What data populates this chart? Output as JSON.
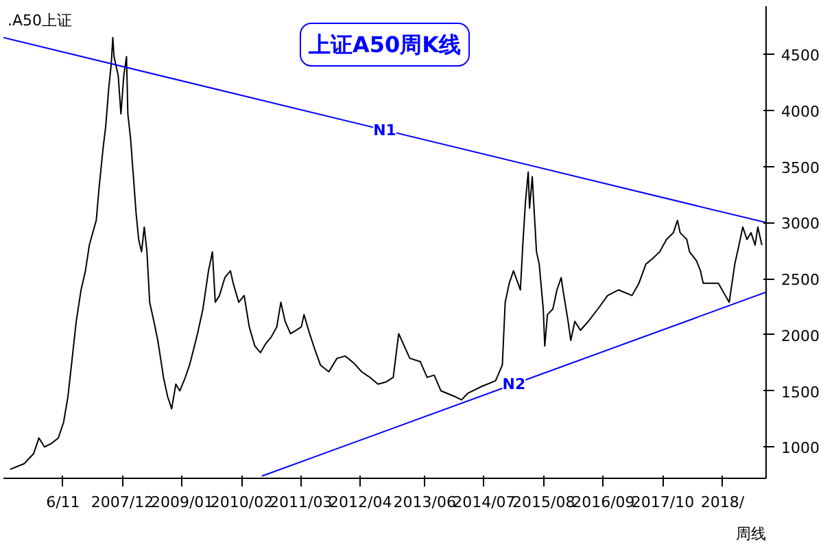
{
  "chart_data": {
    "type": "line",
    "title": "上证A50周K线",
    "annotations": [
      ".A50上证",
      "周线"
    ],
    "x": [
      "2005-11-15",
      "2006-02-15",
      "2006-04-20",
      "2006-05-25",
      "2006-07-01",
      "2006-08-15",
      "2006-10-01",
      "2006-11-05",
      "2006-12-04",
      "2007-01-01",
      "2007-01-28",
      "2007-03-01",
      "2007-03-30",
      "2007-04-25",
      "2007-05-22",
      "2007-06-10",
      "2007-06-28",
      "2007-07-25",
      "2007-08-12",
      "2007-09-01",
      "2007-09-18",
      "2007-09-28",
      "2007-10-06",
      "2007-11-03",
      "2007-11-21",
      "2007-12-10",
      "2007-12-28",
      "2008-01-06",
      "2008-01-24",
      "2008-02-12",
      "2008-03-01",
      "2008-03-18",
      "2008-04-06",
      "2008-04-24",
      "2008-05-12",
      "2008-05-30",
      "2008-06-27",
      "2008-07-23",
      "2008-08-30",
      "2008-09-26",
      "2008-10-23",
      "2008-11-20",
      "2008-12-16",
      "2009-01-22",
      "2009-02-19",
      "2009-03-16",
      "2009-04-13",
      "2009-05-19",
      "2009-06-25",
      "2009-07-21",
      "2009-08-09",
      "2009-09-06",
      "2009-10-12",
      "2009-11-18",
      "2009-12-06",
      "2010-01-12",
      "2010-02-17",
      "2010-03-23",
      "2010-04-29",
      "2010-06-05",
      "2010-07-10",
      "2010-08-16",
      "2010-09-22",
      "2010-10-19",
      "2010-11-16",
      "2010-12-22",
      "2011-01-28",
      "2011-03-04",
      "2011-03-22",
      "2011-04-28",
      "2011-06-04",
      "2011-07-09",
      "2011-09-03",
      "2011-10-27",
      "2011-12-21",
      "2012-02-14",
      "2012-04-08",
      "2012-06-02",
      "2012-07-26",
      "2012-09-19",
      "2012-11-04",
      "2012-12-10",
      "2013-01-16",
      "2013-02-22",
      "2013-05-03",
      "2013-06-17",
      "2013-08-03",
      "2013-09-17",
      "2013-12-17",
      "2014-02-01",
      "2014-03-16",
      "2014-06-16",
      "2014-09-15",
      "2014-10-30",
      "2014-11-18",
      "2014-12-15",
      "2015-01-12",
      "2015-02-27",
      "2015-03-15",
      "2015-04-02",
      "2015-04-20",
      "2015-04-29",
      "2015-05-17",
      "2015-05-26",
      "2015-06-14",
      "2015-07-02",
      "2015-07-29",
      "2015-08-08",
      "2015-08-26",
      "2015-10-01",
      "2015-10-28",
      "2015-11-25",
      "2015-12-13",
      "2016-01-10",
      "2016-01-28",
      "2016-02-24",
      "2016-04-01",
      "2016-05-24",
      "2016-07-26",
      "2016-09-29",
      "2016-12-11",
      "2017-03-10",
      "2017-04-25",
      "2017-06-10",
      "2017-07-25",
      "2017-09-10",
      "2017-10-25",
      "2017-12-10",
      "2018-01-06",
      "2018-01-24",
      "2018-03-09",
      "2018-03-27",
      "2018-05-12",
      "2018-06-08",
      "2018-06-26",
      "2018-08-11",
      "2018-10-05",
      "2018-11-20",
      "2018-12-16",
      "2019-01-22",
      "2019-02-19",
      "2019-03-16",
      "2019-04-13",
      "2019-05-10",
      "2019-06-06",
      "2019-06-24",
      "2019-07-21"
    ],
    "series": [
      {
        "color": "#000000",
        "values": [
          800,
          850,
          940,
          1080,
          1000,
          1030,
          1080,
          1220,
          1450,
          1790,
          2120,
          2400,
          2570,
          2800,
          2930,
          3020,
          3300,
          3660,
          3860,
          4200,
          4420,
          4650,
          4480,
          4310,
          3970,
          4310,
          4480,
          3970,
          3750,
          3410,
          3080,
          2850,
          2740,
          2960,
          2740,
          2290,
          2120,
          1950,
          1620,
          1450,
          1340,
          1560,
          1500,
          1620,
          1730,
          1860,
          2010,
          2230,
          2570,
          2740,
          2290,
          2350,
          2510,
          2570,
          2460,
          2290,
          2350,
          2070,
          1900,
          1840,
          1920,
          1980,
          2070,
          2290,
          2120,
          2010,
          2040,
          2070,
          2180,
          2010,
          1860,
          1730,
          1670,
          1790,
          1810,
          1750,
          1670,
          1620,
          1560,
          1580,
          1620,
          2010,
          1900,
          1790,
          1760,
          1620,
          1640,
          1500,
          1450,
          1420,
          1480,
          1540,
          1590,
          1730,
          2290,
          2460,
          2570,
          2400,
          2800,
          3190,
          3450,
          3130,
          3410,
          3190,
          2740,
          2630,
          2230,
          1900,
          2180,
          2230,
          2400,
          2510,
          2350,
          2120,
          1950,
          2120,
          2040,
          2120,
          2230,
          2350,
          2400,
          2350,
          2460,
          2630,
          2680,
          2740,
          2850,
          2910,
          3020,
          2910,
          2850,
          2740,
          2660,
          2570,
          2460,
          2460,
          2460,
          2350,
          2290,
          2630,
          2800,
          2960,
          2850,
          2910,
          2800,
          2960,
          2800
        ]
      },
      {
        "name": "N1",
        "type": "line",
        "color": "#0000ff",
        "x": [
          "2005-10-01",
          "2019-08-18"
        ],
        "values": [
          4650,
          3000
        ]
      },
      {
        "name": "N2",
        "type": "line",
        "color": "#0000ff",
        "x": [
          "2010-06-15",
          "2019-08-18"
        ],
        "values": [
          740,
          2380
        ]
      }
    ],
    "xlim": [
      "2005-10-01",
      "2019-08-18"
    ],
    "xticks": [
      {
        "value": "2006-11-01",
        "label": "6/11"
      },
      {
        "value": "2007-12-01",
        "label": "2007/12"
      },
      {
        "value": "2009-01-01",
        "label": "2009/01"
      },
      {
        "value": "2010-02-01",
        "label": "2010/02"
      },
      {
        "value": "2011-03-01",
        "label": "2011/03"
      },
      {
        "value": "2012-04-01",
        "label": "2012/04"
      },
      {
        "value": "2013-06-01",
        "label": "2013/06"
      },
      {
        "value": "2014-07-01",
        "label": "2014/07"
      },
      {
        "value": "2015-08-01",
        "label": "2015/08"
      },
      {
        "value": "2016-09-01",
        "label": "2016/09"
      },
      {
        "value": "2017-10-01",
        "label": "2017/10"
      },
      {
        "value": "2018-11-01",
        "label": "2018/"
      }
    ],
    "ylim": [
      720,
      4930
    ],
    "yticks": [
      1000,
      1500,
      2000,
      2500,
      3000,
      3500,
      4000,
      4500
    ],
    "grid": false,
    "legend": false,
    "marker": "none",
    "line_style": "solid"
  }
}
